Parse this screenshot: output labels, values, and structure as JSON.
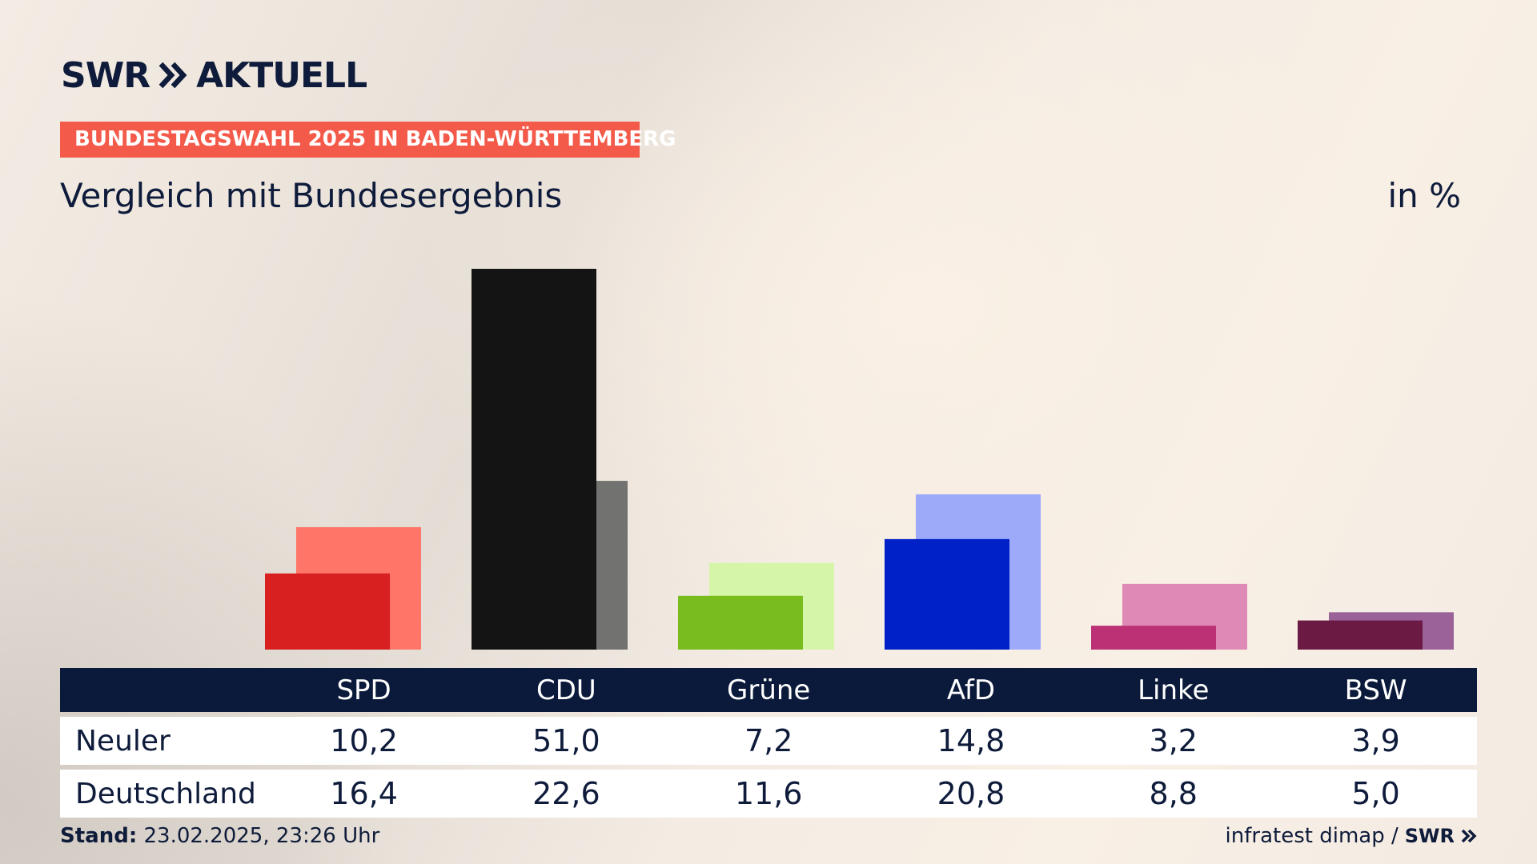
{
  "brand": {
    "name": "SWR",
    "program": "AKTUELL"
  },
  "badge": "BUNDESTAGSWAHL 2025 IN BADEN-WÜRTTEMBERG",
  "subtitle": "Vergleich mit Bundesergebnis",
  "unit": "in %",
  "chart_data": {
    "type": "bar",
    "categories": [
      "SPD",
      "CDU",
      "Grüne",
      "AfD",
      "Linke",
      "BSW"
    ],
    "series": [
      {
        "name": "Neuler",
        "values": [
          10.2,
          51.0,
          7.2,
          14.8,
          3.2,
          3.9
        ]
      },
      {
        "name": "Deutschland",
        "values": [
          16.4,
          22.6,
          11.6,
          20.8,
          8.8,
          5.0
        ]
      }
    ],
    "colors_local": [
      "#d92020",
      "#141414",
      "#78bc1e",
      "#0020c8",
      "#bc3076",
      "#6b1a43"
    ],
    "colors_national": [
      "#ff7568",
      "#727270",
      "#d5f5a8",
      "#9daafa",
      "#df8ab6",
      "#9b6299"
    ],
    "ylim": [
      0,
      51.0
    ]
  },
  "table": {
    "headers": [
      "SPD",
      "CDU",
      "Grüne",
      "AfD",
      "Linke",
      "BSW"
    ],
    "rows": [
      {
        "label": "Neuler",
        "values": [
          "10,2",
          "51,0",
          "7,2",
          "14,8",
          "3,2",
          "3,9"
        ]
      },
      {
        "label": "Deutschland",
        "values": [
          "16,4",
          "22,6",
          "11,6",
          "20,8",
          "8,8",
          "5,0"
        ]
      }
    ]
  },
  "footer": {
    "stand_label": "Stand:",
    "stand_value": "23.02.2025, 23:26 Uhr",
    "source": "infratest dimap /",
    "source_brand": "SWR"
  },
  "colors": {
    "navy": "#0b1a3b",
    "badge": "#f35a4a"
  },
  "icons": {
    "logo_chevron": "double-chevron-right-icon"
  }
}
